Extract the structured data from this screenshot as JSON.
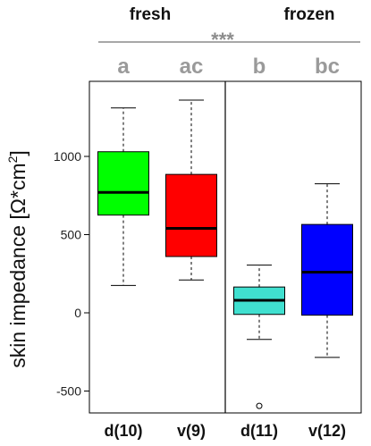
{
  "chart_data": {
    "type": "box",
    "ylabel_main": "skin impedance [",
    "ylabel_unit": "Ω*cm",
    "ylabel_sup": "2",
    "ylabel_close": "]",
    "ylim": [
      -640,
      1480
    ],
    "yticks": [
      -500,
      0,
      500,
      1000
    ],
    "group_labels": [
      "fresh",
      "frozen"
    ],
    "significance": "***",
    "letters": [
      "a",
      "ac",
      "b",
      "bc"
    ],
    "categories": [
      "d(10)",
      "v(9)",
      "d(11)",
      "v(12)"
    ],
    "boxes": [
      {
        "whisker_low": 175,
        "q1": 625,
        "median": 770,
        "q3": 1030,
        "whisker_high": 1310,
        "outliers": [],
        "color": "#00ff00"
      },
      {
        "whisker_low": 210,
        "q1": 360,
        "median": 540,
        "q3": 885,
        "whisker_high": 1360,
        "outliers": [],
        "color": "#ff0000"
      },
      {
        "whisker_low": -170,
        "q1": -10,
        "median": 80,
        "q3": 165,
        "whisker_high": 305,
        "outliers": [
          -595
        ],
        "color": "#40e0d0"
      },
      {
        "whisker_low": -285,
        "q1": -15,
        "median": 260,
        "q3": 565,
        "whisker_high": 825,
        "outliers": [],
        "color": "#0000ff"
      }
    ],
    "divider_between": [
      1,
      2
    ]
  }
}
